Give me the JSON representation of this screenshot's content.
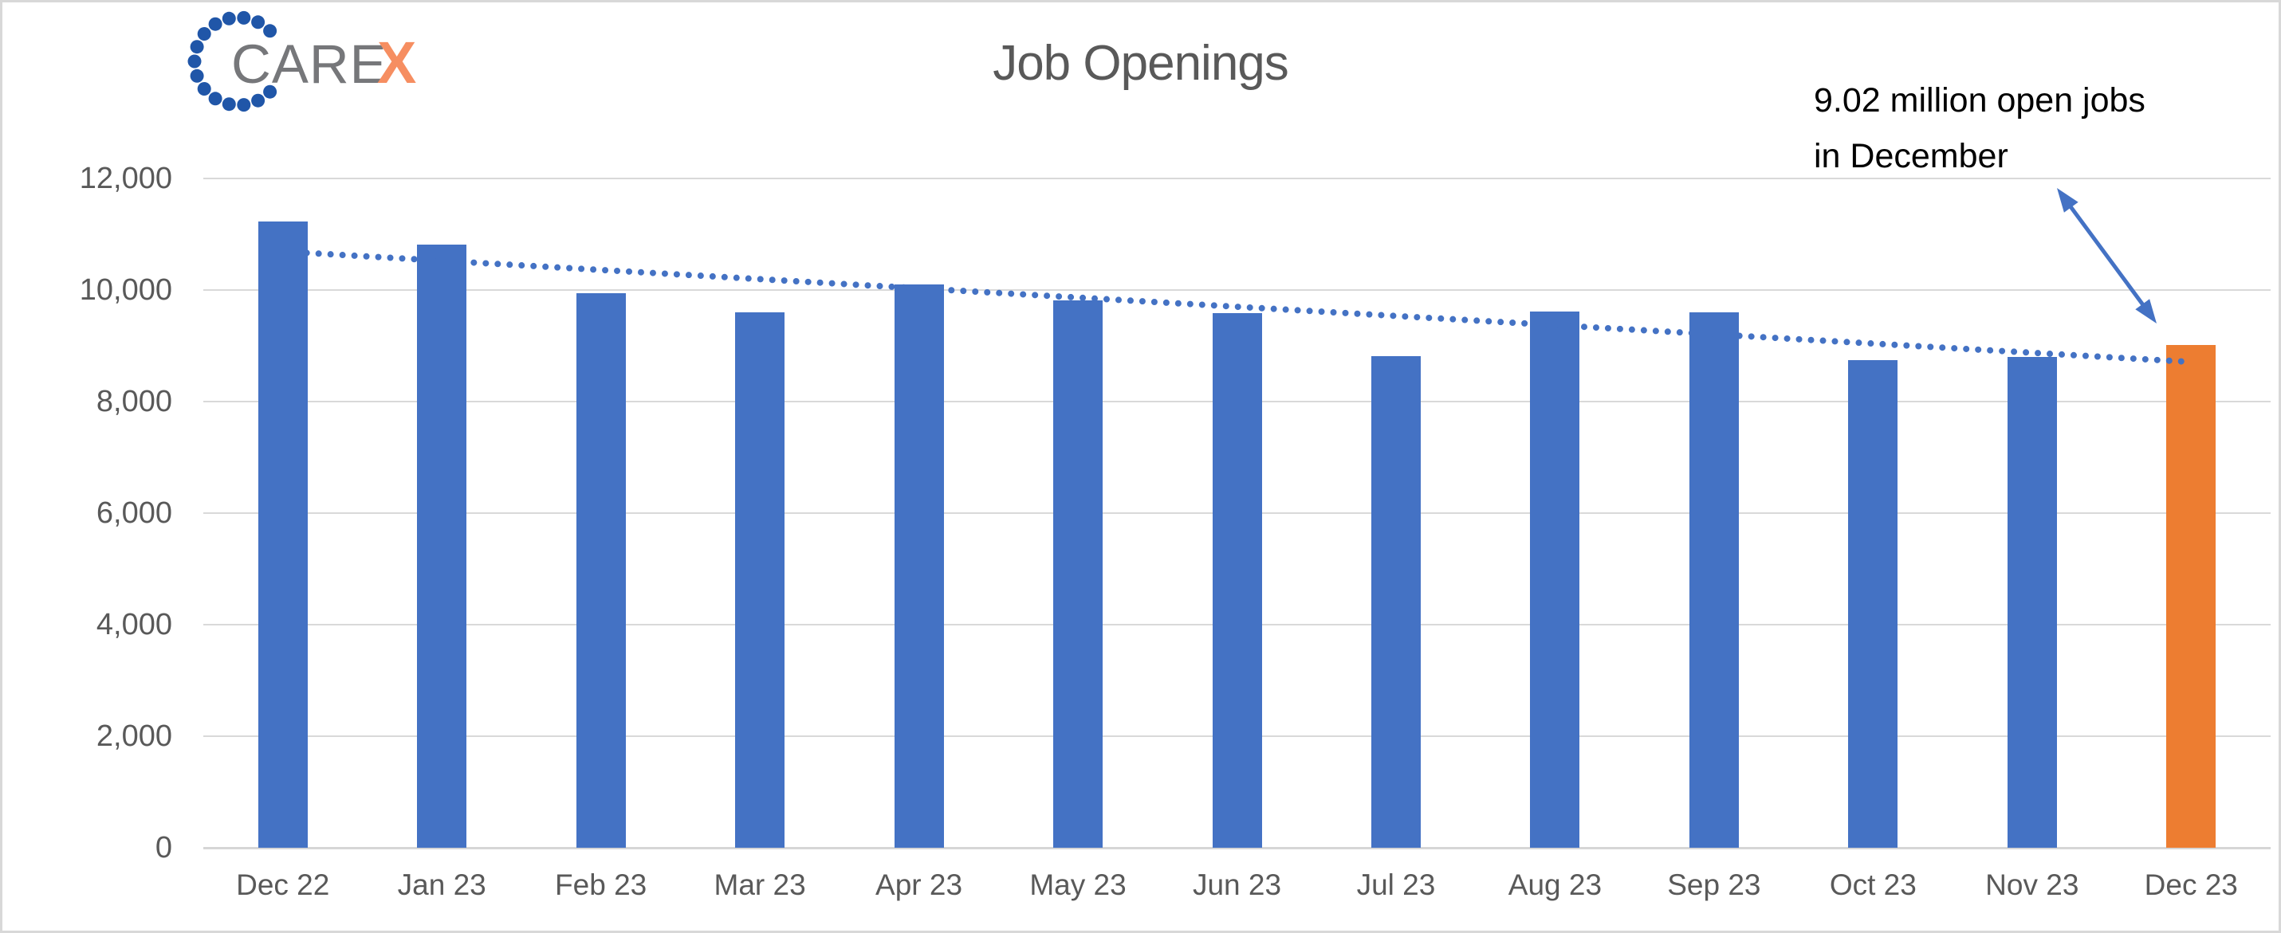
{
  "brand": {
    "care_text": "CARE",
    "x_text": "X",
    "care_color": "#76777A",
    "x_color": "#F68E61",
    "dot_color": "#2056A8"
  },
  "chart_data": {
    "type": "bar",
    "title": "Job Openings",
    "categories": [
      "Dec 22",
      "Jan 23",
      "Feb 23",
      "Mar 23",
      "Apr 23",
      "May 23",
      "Jun 23",
      "Jul 23",
      "Aug 23",
      "Sep 23",
      "Oct 23",
      "Nov 23",
      "Dec 23"
    ],
    "values": [
      11230,
      10820,
      9940,
      9600,
      10100,
      9820,
      9590,
      8820,
      9610,
      9600,
      8740,
      8800,
      9020
    ],
    "highlight_index": 12,
    "y_ticks": [
      0,
      2000,
      4000,
      6000,
      8000,
      10000,
      12000
    ],
    "ylim": [
      0,
      12000
    ],
    "grid": true,
    "legend": "none",
    "bar_color": "#4472C4",
    "highlight_color": "#ED7D31",
    "gridline_color": "#D9D9D9",
    "axis_text_color": "#595959",
    "trendline": {
      "type": "linear",
      "style": "dotted",
      "color": "#4472C4",
      "start_value": 10690,
      "end_value": 8710
    }
  },
  "annotation": {
    "line1": "9.02 million open jobs",
    "line2": "in December",
    "color": "#000000",
    "arrow_color": "#4472C4"
  }
}
